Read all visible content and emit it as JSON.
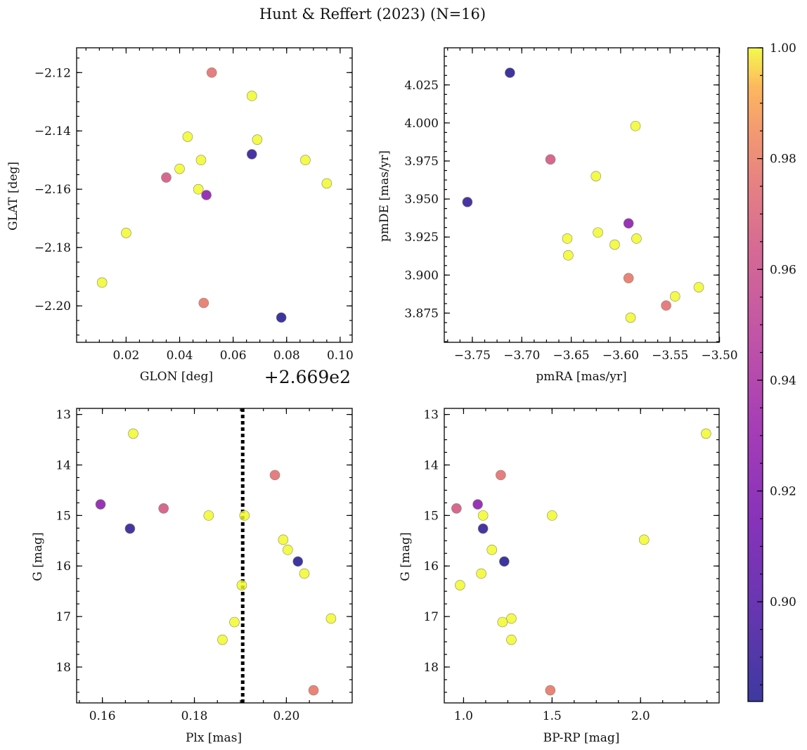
{
  "chart_data": {
    "title": "Hunt & Reffert (2023) (N=16)",
    "colorbar": {
      "colormap": "plasma",
      "vmin": 0.882,
      "vmax": 1.0,
      "ticks": [
        0.9,
        0.92,
        0.94,
        0.96,
        0.98,
        1.0
      ],
      "tick_labels": [
        "0.90",
        "0.92",
        "0.94",
        "0.96",
        "0.98",
        "1.00"
      ]
    },
    "points": [
      {
        "glon_offset": 0.052,
        "glat": -2.12,
        "pmra": -3.554,
        "pmde": 3.88,
        "plx": 0.1975,
        "g": 14.2,
        "bprp": 1.21,
        "prob": 0.975
      },
      {
        "glon_offset": 0.067,
        "glat": -2.128,
        "pmra": -3.585,
        "pmde": 3.998,
        "plx": 0.1667,
        "g": 13.38,
        "bprp": 2.37,
        "prob": 1.0
      },
      {
        "glon_offset": 0.043,
        "glat": -2.142,
        "pmra": -3.654,
        "pmde": 3.924,
        "plx": 0.1831,
        "g": 15.0,
        "bprp": 1.5,
        "prob": 1.0
      },
      {
        "glon_offset": 0.069,
        "glat": -2.143,
        "pmra": -3.625,
        "pmde": 3.965,
        "plx": 0.1909,
        "g": 15.0,
        "bprp": 1.11,
        "prob": 1.0
      },
      {
        "glon_offset": 0.067,
        "glat": -2.148,
        "pmra": -3.755,
        "pmde": 3.948,
        "plx": 0.166,
        "g": 15.26,
        "bprp": 1.11,
        "prob": 0.888
      },
      {
        "glon_offset": 0.048,
        "glat": -2.15,
        "pmra": -3.623,
        "pmde": 3.928,
        "plx": 0.1993,
        "g": 15.48,
        "bprp": 2.02,
        "prob": 1.0
      },
      {
        "glon_offset": 0.087,
        "glat": -2.15,
        "pmra": -3.545,
        "pmde": 3.886,
        "plx": 0.2003,
        "g": 15.68,
        "bprp": 1.16,
        "prob": 1.0
      },
      {
        "glon_offset": 0.04,
        "glat": -2.153,
        "pmra": -3.606,
        "pmde": 3.92,
        "plx": 0.2039,
        "g": 16.15,
        "bprp": 1.1,
        "prob": 1.0
      },
      {
        "glon_offset": 0.035,
        "glat": -2.156,
        "pmra": -3.671,
        "pmde": 3.976,
        "plx": 0.1733,
        "g": 14.86,
        "bprp": 0.96,
        "prob": 0.965
      },
      {
        "glon_offset": 0.095,
        "glat": -2.158,
        "pmra": -3.521,
        "pmde": 3.892,
        "plx": 0.2097,
        "g": 17.04,
        "bprp": 1.27,
        "prob": 1.0
      },
      {
        "glon_offset": 0.047,
        "glat": -2.16,
        "pmra": -3.584,
        "pmde": 3.924,
        "plx": 0.1903,
        "g": 16.38,
        "bprp": 0.98,
        "prob": 1.0
      },
      {
        "glon_offset": 0.05,
        "glat": -2.162,
        "pmra": -3.592,
        "pmde": 3.934,
        "plx": 0.1596,
        "g": 14.78,
        "bprp": 1.08,
        "prob": 0.925
      },
      {
        "glon_offset": 0.02,
        "glat": -2.175,
        "pmra": -3.653,
        "pmde": 3.913,
        "plx": 0.1887,
        "g": 17.11,
        "bprp": 1.22,
        "prob": 1.0
      },
      {
        "glon_offset": 0.011,
        "glat": -2.192,
        "pmra": -3.59,
        "pmde": 3.872,
        "plx": 0.1861,
        "g": 17.46,
        "bprp": 1.27,
        "prob": 1.0
      },
      {
        "glon_offset": 0.049,
        "glat": -2.199,
        "pmra": -3.592,
        "pmde": 3.898,
        "plx": 0.2059,
        "g": 18.46,
        "bprp": 1.49,
        "prob": 0.978
      },
      {
        "glon_offset": 0.078,
        "glat": -2.204,
        "pmra": -3.712,
        "pmde": 4.033,
        "plx": 0.2025,
        "g": 15.91,
        "bprp": 1.23,
        "prob": 0.884
      }
    ],
    "panels": [
      {
        "id": "glon-glat",
        "type": "scatter",
        "xkey": "glon_offset",
        "ykey": "glat",
        "xlabel": "GLON [deg]",
        "ylabel": "GLAT [deg]",
        "offset_text": "+2.669e2",
        "xlim": [
          0.0015,
          0.1045
        ],
        "ylim": [
          -2.2125,
          -2.1115
        ],
        "yinvert": false,
        "xticks": [
          0.02,
          0.04,
          0.06,
          0.08,
          0.1
        ],
        "xtick_labels": [
          "0.02",
          "0.04",
          "0.06",
          "0.08",
          "0.10"
        ],
        "yticks": [
          -2.2,
          -2.18,
          -2.16,
          -2.14,
          -2.12
        ],
        "ytick_labels": [
          "−2.20",
          "−2.18",
          "−2.16",
          "−2.14",
          "−2.12"
        ]
      },
      {
        "id": "pmra-pmde",
        "type": "scatter",
        "xkey": "pmra",
        "ykey": "pmde",
        "xlabel": "pmRA [mas/yr]",
        "ylabel": "pmDE [mas/yr]",
        "xlim": [
          -3.7784,
          -3.5004
        ],
        "ylim": [
          3.8558,
          4.0494
        ],
        "yinvert": false,
        "xticks": [
          -3.75,
          -3.7,
          -3.65,
          -3.6,
          -3.55,
          -3.5
        ],
        "xtick_labels": [
          "−3.75",
          "−3.70",
          "−3.65",
          "−3.60",
          "−3.55",
          "−3.50"
        ],
        "yticks": [
          3.875,
          3.9,
          3.925,
          3.95,
          3.975,
          4.0,
          4.025
        ],
        "ytick_labels": [
          "3.875",
          "3.900",
          "3.925",
          "3.950",
          "3.975",
          "4.000",
          "4.025"
        ]
      },
      {
        "id": "plx-g",
        "type": "scatter",
        "xkey": "plx",
        "ykey": "g",
        "xlabel": "Plx [mas]",
        "ylabel": "G [mag]",
        "xlim": [
          0.1544,
          0.2143
        ],
        "ylim": [
          18.71,
          12.88
        ],
        "yinvert": true,
        "vline": 0.1905,
        "xticks": [
          0.16,
          0.18,
          0.2
        ],
        "xtick_labels": [
          "0.16",
          "0.18",
          "0.20"
        ],
        "yticks": [
          13,
          14,
          15,
          16,
          17,
          18
        ],
        "ytick_labels": [
          "13",
          "14",
          "15",
          "16",
          "17",
          "18"
        ]
      },
      {
        "id": "bprp-g",
        "type": "scatter",
        "xkey": "bprp",
        "ykey": "g",
        "xlabel": "BP-RP [mag]",
        "ylabel": "G [mag]",
        "xlim": [
          0.891,
          2.444
        ],
        "ylim": [
          18.71,
          12.88
        ],
        "yinvert": true,
        "xticks": [
          1.0,
          1.5,
          2.0
        ],
        "xtick_labels": [
          "1.0",
          "1.5",
          "2.0"
        ],
        "yticks": [
          13,
          14,
          15,
          16,
          17,
          18
        ],
        "ytick_labels": [
          "13",
          "14",
          "15",
          "16",
          "17",
          "18"
        ]
      }
    ]
  }
}
